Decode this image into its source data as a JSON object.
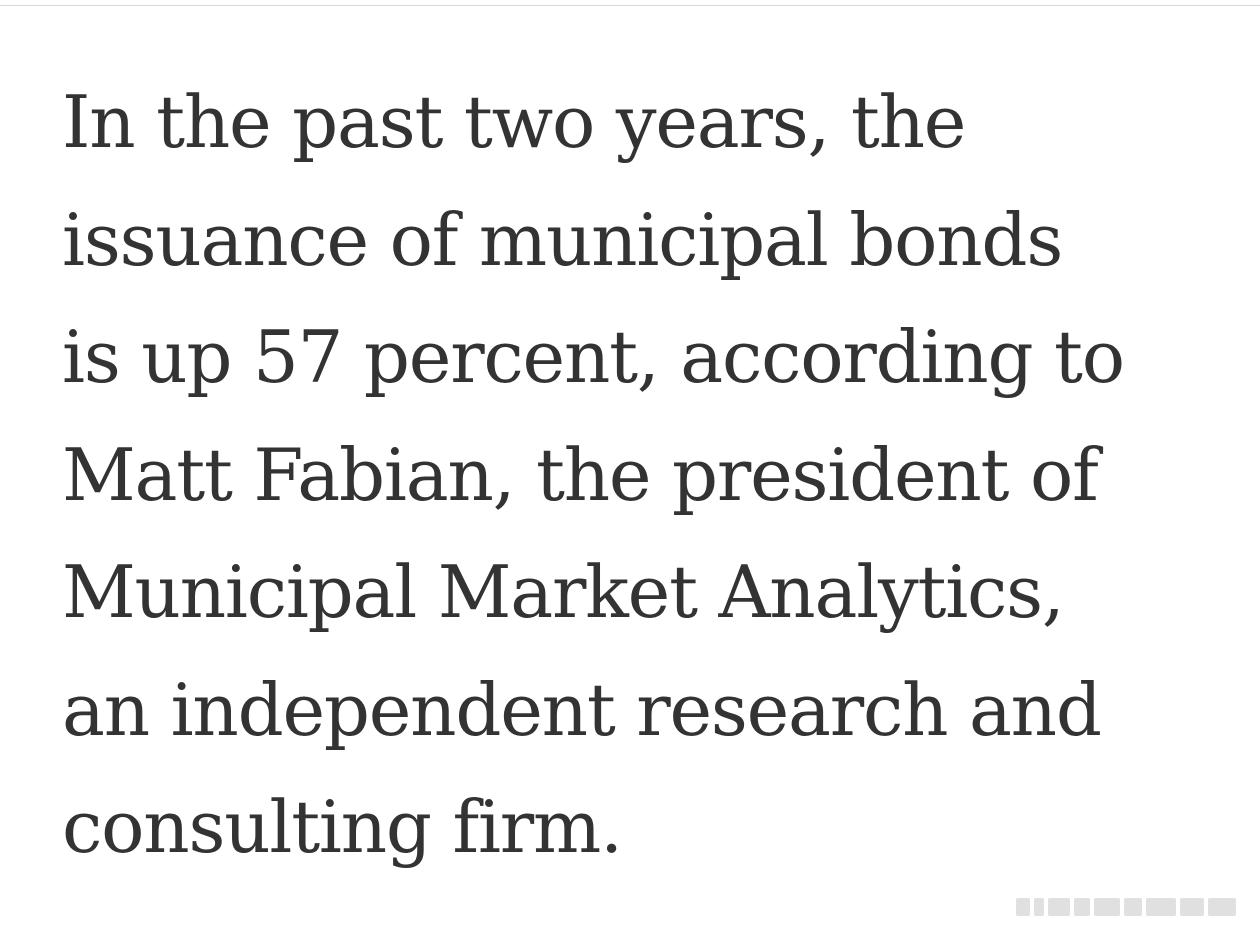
{
  "article": {
    "lines": [
      "In the past two years, the",
      "issuance of municipal bonds",
      "is up 57 percent, according to",
      "Matt Fabian, the president of",
      "Municipal Market Analytics,",
      "an independent research and",
      "consulting firm."
    ]
  },
  "colors": {
    "text": "#333333",
    "background": "#ffffff",
    "rule": "#d9d9d9"
  }
}
